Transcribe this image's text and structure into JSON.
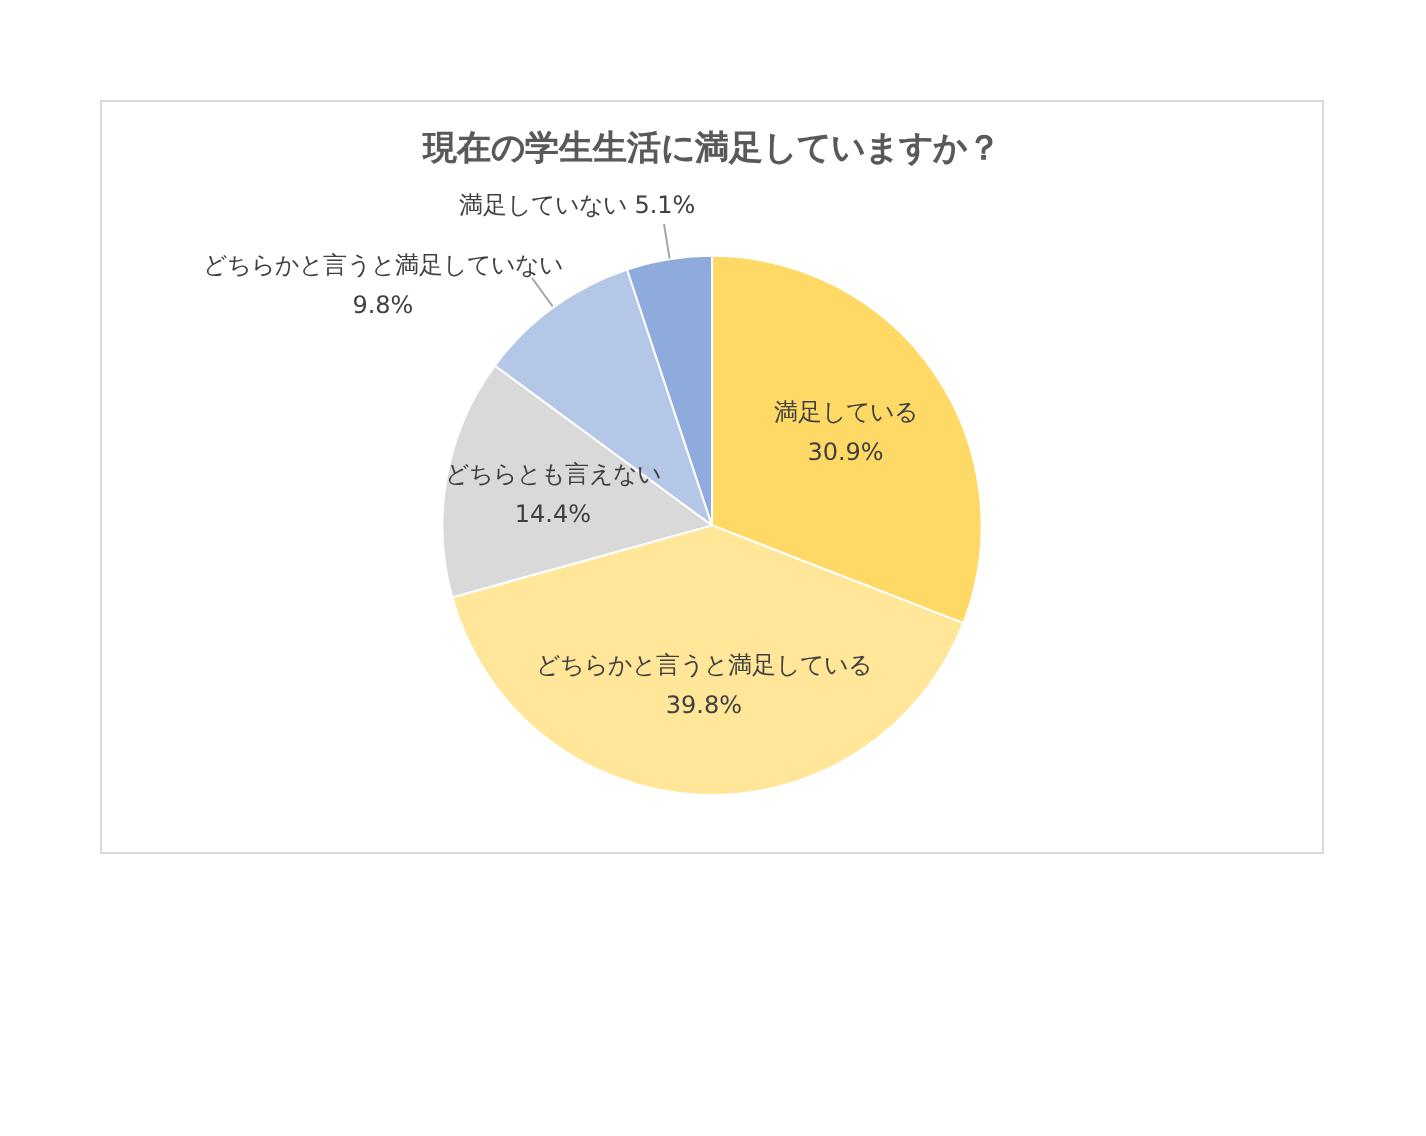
{
  "chart_data": {
    "type": "pie",
    "title": "現在の学生生活に満足していますか？",
    "categories": [
      "満足している",
      "どちらかと言うと満足している",
      "どちらとも言えない",
      "どちらかと言うと満足していない",
      "満足していない"
    ],
    "values": [
      30.9,
      39.8,
      14.4,
      9.8,
      5.1
    ],
    "colors": [
      "#ffd966",
      "#ffe699",
      "#d9d9d9",
      "#b4c7e7",
      "#8faadc"
    ],
    "value_labels": [
      "30.9%",
      "39.8%",
      "14.4%",
      "9.8%",
      "5.1%"
    ],
    "legend": false
  }
}
